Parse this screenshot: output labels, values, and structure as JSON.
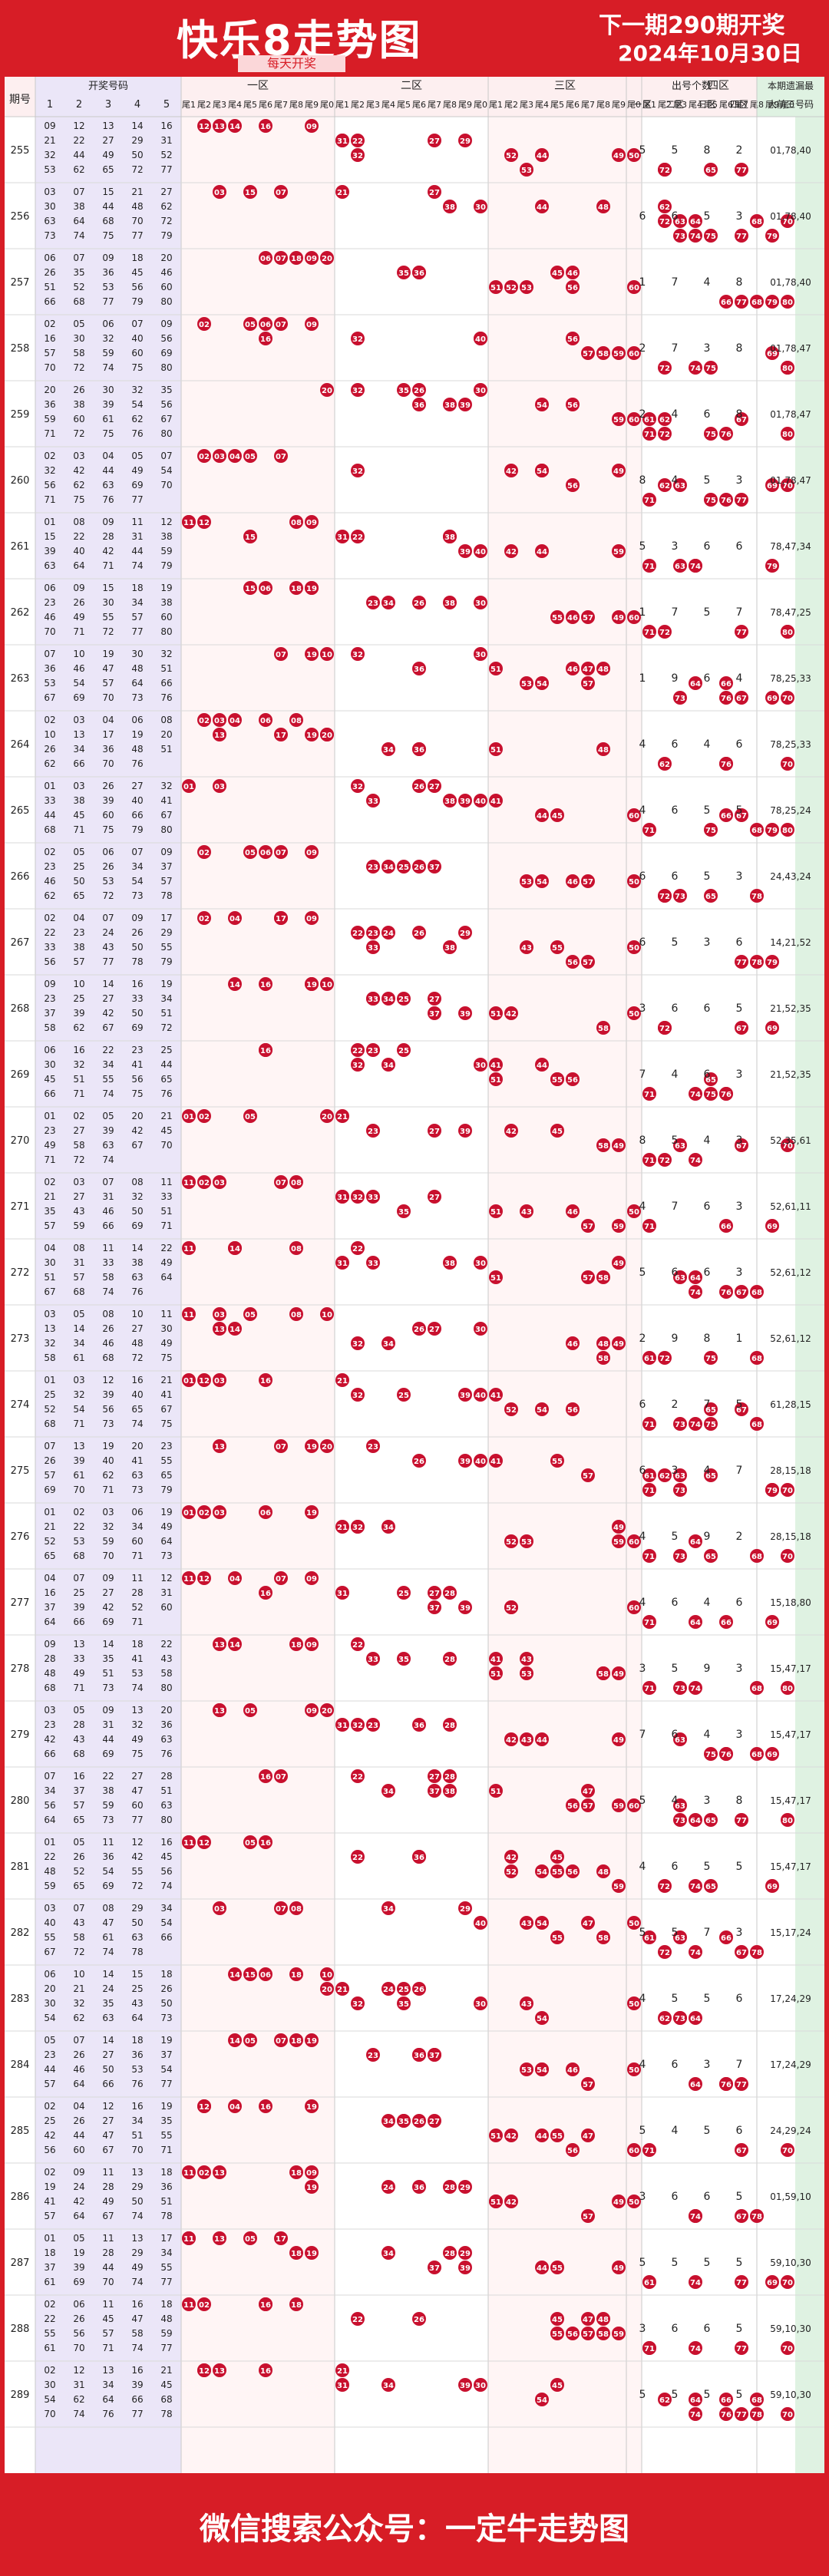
{
  "header": {
    "title": "快乐8走势图",
    "subtitle": "每天开奖",
    "next_issue": "下一期290期开奖",
    "date": "2024年10月30日"
  },
  "columns": {
    "issue": "期号",
    "draw_numbers": "开奖号码",
    "draw_cols": [
      "1",
      "2",
      "3",
      "4",
      "5"
    ],
    "zones": [
      "一区",
      "二区",
      "三区",
      "四区"
    ],
    "tails": [
      "尾1",
      "尾2",
      "尾3",
      "尾4",
      "尾5",
      "尾6",
      "尾7",
      "尾8",
      "尾9",
      "尾0"
    ],
    "count_header": "出号个数",
    "count_cols": [
      "一区",
      "二区",
      "三区",
      "四区"
    ],
    "next_header_1": "本期遗漏最",
    "next_header_2": "大前三号码"
  },
  "footer": "微信搜索公众号：一定牛走势图",
  "chart_data": {
    "type": "table",
    "rows": [
      {
        "issue": "255",
        "nums": [
          9,
          12,
          13,
          14,
          16,
          21,
          22,
          27,
          29,
          31,
          32,
          44,
          49,
          50,
          52,
          53,
          62,
          65,
          72,
          77
        ],
        "counts": [
          5,
          5,
          8,
          2
        ],
        "miss": "01,78,40"
      },
      {
        "issue": "256",
        "nums": [
          3,
          7,
          15,
          21,
          27,
          30,
          38,
          44,
          48,
          62,
          63,
          64,
          68,
          70,
          72,
          73,
          74,
          75,
          77,
          79
        ],
        "counts": [
          6,
          6,
          5,
          3
        ],
        "miss": "01,78,40"
      },
      {
        "issue": "257",
        "nums": [
          6,
          7,
          9,
          18,
          20,
          26,
          35,
          36,
          45,
          46,
          51,
          52,
          53,
          56,
          60,
          66,
          68,
          77,
          79,
          80
        ],
        "counts": [
          1,
          7,
          4,
          8
        ],
        "miss": "01,78,40"
      },
      {
        "issue": "258",
        "nums": [
          2,
          5,
          6,
          7,
          9,
          16,
          30,
          32,
          40,
          56,
          57,
          58,
          59,
          60,
          69,
          70,
          72,
          74,
          75,
          80
        ],
        "counts": [
          2,
          7,
          3,
          8
        ],
        "miss": "01,78,47"
      },
      {
        "issue": "259",
        "nums": [
          20,
          26,
          30,
          32,
          35,
          36,
          38,
          39,
          54,
          56,
          59,
          60,
          61,
          62,
          67,
          71,
          72,
          75,
          76,
          80
        ],
        "counts": [
          2,
          4,
          6,
          8
        ],
        "miss": "01,78,47"
      },
      {
        "issue": "260",
        "nums": [
          2,
          3,
          4,
          5,
          7,
          32,
          42,
          44,
          49,
          54,
          56,
          62,
          63,
          69,
          70,
          71,
          75,
          76,
          77
        ],
        "counts": [
          8,
          4,
          5,
          3
        ],
        "miss": "01,78,47"
      },
      {
        "issue": "261",
        "nums": [
          1,
          8,
          9,
          11,
          12,
          15,
          22,
          28,
          31,
          38,
          39,
          40,
          42,
          44,
          59,
          63,
          64,
          71,
          74,
          79
        ],
        "counts": [
          5,
          3,
          6,
          6
        ],
        "miss": "78,47,34"
      },
      {
        "issue": "262",
        "nums": [
          6,
          9,
          15,
          18,
          19,
          23,
          26,
          30,
          34,
          38,
          46,
          49,
          55,
          57,
          60,
          70,
          71,
          72,
          77,
          80
        ],
        "counts": [
          1,
          7,
          5,
          7
        ],
        "miss": "78,47,25"
      },
      {
        "issue": "263",
        "nums": [
          7,
          10,
          19,
          30,
          32,
          36,
          46,
          47,
          48,
          51,
          53,
          54,
          57,
          64,
          66,
          67,
          69,
          70,
          73,
          76
        ],
        "counts": [
          1,
          9,
          6,
          4
        ],
        "miss": "78,25,33"
      },
      {
        "issue": "264",
        "nums": [
          2,
          3,
          4,
          6,
          8,
          10,
          13,
          17,
          19,
          20,
          26,
          34,
          36,
          48,
          51,
          62,
          66,
          70,
          76
        ],
        "counts": [
          4,
          6,
          4,
          6
        ],
        "miss": "78,25,33"
      },
      {
        "issue": "265",
        "nums": [
          1,
          3,
          26,
          27,
          32,
          33,
          38,
          39,
          40,
          41,
          44,
          45,
          60,
          66,
          67,
          68,
          71,
          75,
          79,
          80
        ],
        "counts": [
          4,
          6,
          5,
          5
        ],
        "miss": "78,25,24"
      },
      {
        "issue": "266",
        "nums": [
          2,
          5,
          6,
          7,
          9,
          23,
          25,
          26,
          34,
          37,
          46,
          50,
          53,
          54,
          57,
          62,
          65,
          72,
          73,
          78
        ],
        "counts": [
          6,
          6,
          5,
          3
        ],
        "miss": "24,43,24"
      },
      {
        "issue": "267",
        "nums": [
          2,
          4,
          7,
          9,
          17,
          22,
          23,
          24,
          26,
          29,
          33,
          38,
          43,
          50,
          55,
          56,
          57,
          77,
          78,
          79
        ],
        "counts": [
          6,
          5,
          3,
          6
        ],
        "miss": "14,21,52"
      },
      {
        "issue": "268",
        "nums": [
          9,
          10,
          14,
          16,
          19,
          23,
          25,
          27,
          33,
          34,
          37,
          39,
          42,
          50,
          51,
          58,
          62,
          67,
          69,
          72
        ],
        "counts": [
          3,
          6,
          6,
          5
        ],
        "miss": "21,52,35"
      },
      {
        "issue": "269",
        "nums": [
          6,
          16,
          22,
          23,
          25,
          30,
          32,
          34,
          41,
          44,
          45,
          51,
          55,
          56,
          65,
          66,
          71,
          74,
          75,
          76
        ],
        "counts": [
          7,
          4,
          6,
          3
        ],
        "miss": "21,52,35"
      },
      {
        "issue": "270",
        "nums": [
          1,
          2,
          5,
          20,
          21,
          23,
          27,
          39,
          42,
          45,
          49,
          58,
          63,
          67,
          70,
          71,
          72,
          74
        ],
        "counts": [
          8,
          5,
          4,
          3
        ],
        "miss": "52,35,61"
      },
      {
        "issue": "271",
        "nums": [
          2,
          3,
          7,
          8,
          11,
          21,
          27,
          31,
          32,
          33,
          35,
          43,
          46,
          50,
          51,
          57,
          59,
          66,
          69,
          71
        ],
        "counts": [
          4,
          7,
          6,
          3
        ],
        "miss": "52,61,11"
      },
      {
        "issue": "272",
        "nums": [
          4,
          8,
          11,
          14,
          22,
          30,
          31,
          33,
          38,
          49,
          51,
          57,
          58,
          63,
          64,
          67,
          68,
          74,
          76
        ],
        "counts": [
          5,
          6,
          6,
          3
        ],
        "miss": "52,61,12"
      },
      {
        "issue": "273",
        "nums": [
          3,
          5,
          8,
          10,
          11,
          13,
          14,
          26,
          27,
          30,
          32,
          34,
          46,
          48,
          49,
          58,
          61,
          68,
          72,
          75
        ],
        "counts": [
          2,
          9,
          8,
          1
        ],
        "miss": "52,61,12"
      },
      {
        "issue": "274",
        "nums": [
          1,
          3,
          12,
          16,
          21,
          25,
          32,
          39,
          40,
          41,
          52,
          54,
          56,
          65,
          67,
          68,
          71,
          73,
          74,
          75
        ],
        "counts": [
          6,
          2,
          7,
          5
        ],
        "miss": "61,28,15"
      },
      {
        "issue": "275",
        "nums": [
          7,
          13,
          19,
          20,
          23,
          26,
          39,
          40,
          41,
          55,
          57,
          61,
          62,
          63,
          65,
          69,
          70,
          71,
          73,
          79
        ],
        "counts": [
          6,
          3,
          4,
          7
        ],
        "miss": "28,15,18"
      },
      {
        "issue": "276",
        "nums": [
          1,
          2,
          3,
          6,
          19,
          21,
          22,
          32,
          34,
          49,
          52,
          53,
          59,
          60,
          64,
          65,
          68,
          70,
          71,
          73
        ],
        "counts": [
          4,
          5,
          9,
          2
        ],
        "miss": "28,15,18"
      },
      {
        "issue": "277",
        "nums": [
          4,
          7,
          9,
          11,
          12,
          16,
          25,
          27,
          28,
          31,
          37,
          39,
          42,
          52,
          60,
          64,
          66,
          69,
          71
        ],
        "counts": [
          4,
          6,
          4,
          6
        ],
        "miss": "15,18,80"
      },
      {
        "issue": "278",
        "nums": [
          9,
          13,
          14,
          18,
          22,
          28,
          33,
          35,
          41,
          43,
          48,
          49,
          51,
          53,
          58,
          68,
          71,
          73,
          74,
          80
        ],
        "counts": [
          3,
          5,
          9,
          3
        ],
        "miss": "15,47,17"
      },
      {
        "issue": "279",
        "nums": [
          3,
          5,
          9,
          13,
          20,
          23,
          28,
          31,
          32,
          36,
          42,
          43,
          44,
          49,
          63,
          66,
          68,
          69,
          75,
          76
        ],
        "counts": [
          7,
          6,
          4,
          3
        ],
        "miss": "15,47,17"
      },
      {
        "issue": "280",
        "nums": [
          7,
          16,
          22,
          27,
          28,
          34,
          37,
          38,
          47,
          51,
          56,
          57,
          59,
          60,
          63,
          64,
          65,
          73,
          77,
          80
        ],
        "counts": [
          5,
          4,
          3,
          8
        ],
        "miss": "15,47,17"
      },
      {
        "issue": "281",
        "nums": [
          1,
          5,
          11,
          12,
          16,
          22,
          26,
          36,
          42,
          45,
          48,
          52,
          54,
          55,
          56,
          59,
          65,
          69,
          72,
          74
        ],
        "counts": [
          4,
          6,
          5,
          5
        ],
        "miss": "15,47,17"
      },
      {
        "issue": "282",
        "nums": [
          3,
          7,
          8,
          29,
          34,
          40,
          43,
          47,
          50,
          54,
          55,
          58,
          61,
          63,
          66,
          67,
          72,
          74,
          78
        ],
        "counts": [
          5,
          5,
          7,
          3
        ],
        "miss": "15,17,24"
      },
      {
        "issue": "283",
        "nums": [
          6,
          10,
          14,
          15,
          24,
          18,
          20,
          21,
          25,
          26,
          30,
          32,
          35,
          43,
          50,
          54,
          62,
          63,
          64,
          73
        ],
        "counts": [
          4,
          5,
          5,
          6
        ],
        "miss": "17,24,29"
      },
      {
        "issue": "284",
        "nums": [
          5,
          7,
          14,
          18,
          19,
          23,
          26,
          27,
          36,
          37,
          44,
          46,
          50,
          53,
          54,
          57,
          64,
          66,
          76,
          77
        ],
        "counts": [
          4,
          6,
          3,
          7
        ],
        "miss": "17,24,29"
      },
      {
        "issue": "285",
        "nums": [
          2,
          4,
          12,
          16,
          19,
          25,
          26,
          27,
          34,
          35,
          42,
          44,
          47,
          51,
          55,
          56,
          60,
          67,
          70,
          71
        ],
        "counts": [
          5,
          4,
          5,
          6
        ],
        "miss": "24,29,24"
      },
      {
        "issue": "286",
        "nums": [
          2,
          9,
          11,
          13,
          19,
          18,
          24,
          28,
          29,
          36,
          41,
          42,
          49,
          50,
          51,
          57,
          64,
          67,
          74,
          78
        ],
        "counts": [
          3,
          6,
          6,
          5
        ],
        "miss": "01,59,10"
      },
      {
        "issue": "287",
        "nums": [
          1,
          5,
          13,
          17,
          19,
          11,
          18,
          28,
          29,
          34,
          37,
          39,
          44,
          49,
          55,
          61,
          69,
          70,
          74,
          77
        ],
        "counts": [
          5,
          5,
          5,
          5
        ],
        "miss": "59,10,30"
      },
      {
        "issue": "288",
        "nums": [
          2,
          6,
          11,
          16,
          18,
          22,
          26,
          45,
          47,
          48,
          55,
          56,
          57,
          58,
          59,
          61,
          70,
          71,
          74,
          77
        ],
        "counts": [
          3,
          6,
          6,
          5
        ],
        "miss": "59,10,30"
      },
      {
        "issue": "289",
        "nums": [
          2,
          12,
          13,
          16,
          21,
          30,
          31,
          34,
          39,
          45,
          54,
          62,
          64,
          66,
          68,
          70,
          74,
          76,
          77,
          78
        ],
        "counts": [
          5,
          5,
          5,
          5
        ],
        "miss": "59,10,30"
      }
    ]
  }
}
